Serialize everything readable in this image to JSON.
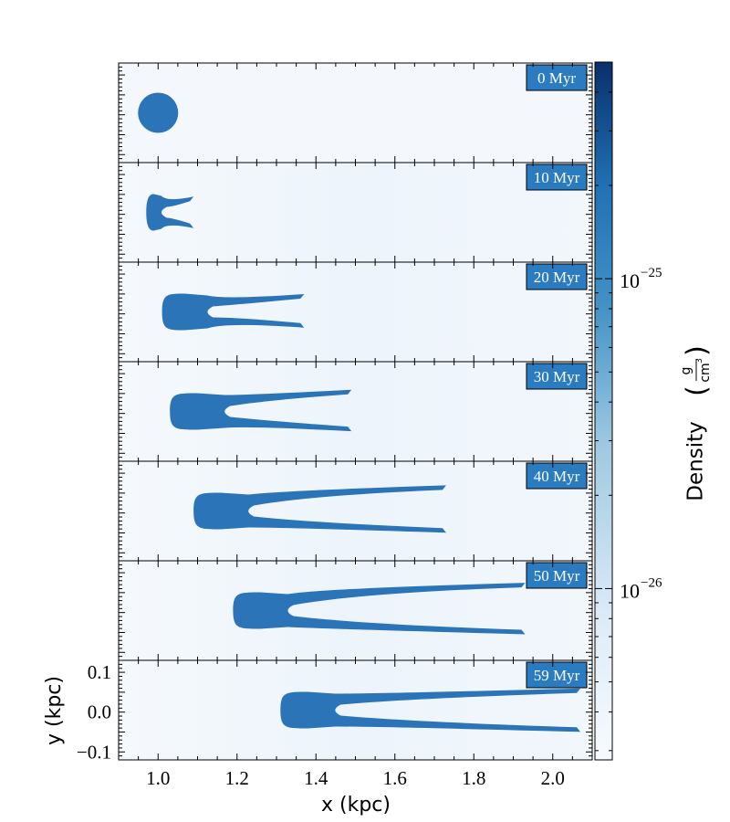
{
  "chart_data": {
    "type": "heatmap",
    "panels": [
      {
        "label": "0 Myr",
        "head_x": 0.9,
        "head_y": 0.0,
        "tail_x": null,
        "tail_top_y": null,
        "tail_bot_y": null
      },
      {
        "label": "10 Myr",
        "head_x": 0.97,
        "head_y": 0.0,
        "tail_x": 1.09,
        "tail_top_y": 0.035,
        "tail_bot_y": -0.035
      },
      {
        "label": "20 Myr",
        "head_x": 1.01,
        "head_y": 0.0,
        "tail_x": 1.37,
        "tail_top_y": 0.04,
        "tail_bot_y": -0.035
      },
      {
        "label": "30 Myr",
        "head_x": 1.03,
        "head_y": 0.0,
        "tail_x": 1.49,
        "tail_top_y": 0.05,
        "tail_bot_y": -0.045
      },
      {
        "label": "40 Myr",
        "head_x": 1.09,
        "head_y": 0.0,
        "tail_x": 1.73,
        "tail_top_y": 0.06,
        "tail_bot_y": -0.05
      },
      {
        "label": "50 Myr",
        "head_x": 1.19,
        "head_y": 0.0,
        "tail_x": 1.93,
        "tail_top_y": 0.065,
        "tail_bot_y": -0.055
      },
      {
        "label": "59 Myr",
        "head_x": 1.31,
        "head_y": 0.0,
        "tail_x": 2.07,
        "tail_top_y": 0.05,
        "tail_bot_y": -0.05
      }
    ],
    "xlabel": "x  (kpc)",
    "ylabel": "y  (kpc)",
    "xlim": [
      0.9,
      2.1
    ],
    "ylim": [
      -0.12,
      0.13
    ],
    "x_ticks": [
      "1.0",
      "1.2",
      "1.4",
      "1.6",
      "1.8",
      "2.0"
    ],
    "y_ticks": [
      "0.1",
      "0.0",
      "−0.1"
    ],
    "colorbar": {
      "label": "Density",
      "unit_numerator": "g",
      "unit_denominator": "cm",
      "unit_exponent": "3",
      "scale": "log",
      "range": [
        2.8e-27,
        5e-25
      ],
      "tick_labels": [
        {
          "value": 1e-25,
          "base": "10",
          "exponent": "−25"
        },
        {
          "value": 1e-26,
          "base": "10",
          "exponent": "−26"
        }
      ],
      "colors": [
        "#f7fbff",
        "#deebf7",
        "#9ecae1",
        "#4292c6",
        "#2171b5",
        "#08306b"
      ]
    },
    "cloud_color": "#2c74b8",
    "background_color": "#eef4fb"
  }
}
